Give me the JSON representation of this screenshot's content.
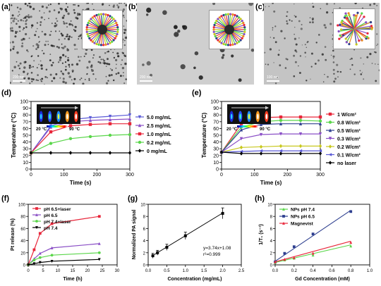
{
  "figure": {
    "panels": {
      "a": {
        "letter": "(a)",
        "scalebar": "200 nm"
      },
      "b": {
        "letter": "(b)",
        "scalebar": "200 nm"
      },
      "c": {
        "letter": "(c)",
        "scalebar": "100 nm"
      },
      "d": {
        "letter": "(d)"
      },
      "e": {
        "letter": "(e)"
      },
      "f": {
        "letter": "(f)"
      },
      "g": {
        "letter": "(g)"
      },
      "h": {
        "letter": "(h)"
      }
    },
    "thermal_insets": {
      "d": {
        "low": "20 °C",
        "high": "90 °C"
      },
      "e": {
        "low": "20 °C",
        "high": "90 °C"
      }
    },
    "annotations": {
      "g_fit": "y=3.74x+1.08",
      "g_r2": "r²=0.999"
    },
    "colors": {
      "purple": "#5a5ad6",
      "violet": "#8a4fc6",
      "red": "#e8263a",
      "green": "#5ad64a",
      "black": "#000000",
      "yellow": "#c8c81e",
      "navy": "#2e3f8f",
      "gray_tem": "#c9c9c9"
    }
  },
  "chart_data": [
    {
      "id": "d",
      "type": "line",
      "xlabel": "Time (s)",
      "ylabel": "Temperature (°C)",
      "xlim": [
        0,
        300
      ],
      "ylim": [
        0,
        100
      ],
      "xticks": [
        0,
        100,
        200,
        300
      ],
      "yticks": [
        0,
        10,
        20,
        30,
        40,
        50,
        60,
        70,
        80,
        90,
        100
      ],
      "x": [
        0,
        60,
        120,
        180,
        240,
        300
      ],
      "legend_position": "right",
      "series": [
        {
          "name": "5.0 mg/mL",
          "color": "#5a5ad6",
          "marker": "triangle-down",
          "values": [
            24,
            64,
            73,
            76,
            78,
            80
          ]
        },
        {
          "name": "2.5 mg/mL",
          "color": "#8a4fc6",
          "marker": "triangle",
          "values": [
            24,
            62,
            70,
            72,
            73,
            74
          ]
        },
        {
          "name": "1.0 mg/mL",
          "color": "#e8263a",
          "marker": "square",
          "values": [
            24,
            55,
            64,
            66,
            67,
            67
          ]
        },
        {
          "name": "0.2 mg/mL",
          "color": "#5ad64a",
          "marker": "circle",
          "values": [
            24,
            38,
            45,
            48,
            50,
            51
          ]
        },
        {
          "name": "0 mg/mL",
          "color": "#000000",
          "marker": "diamond",
          "values": [
            24,
            24,
            24,
            24,
            24,
            24
          ]
        }
      ]
    },
    {
      "id": "e",
      "type": "line",
      "xlabel": "Time (s)",
      "ylabel": "Temperature (°C)",
      "xlim": [
        0,
        300
      ],
      "ylim": [
        0,
        100
      ],
      "xticks": [
        0,
        100,
        200,
        300
      ],
      "yticks": [
        0,
        10,
        20,
        30,
        40,
        50,
        60,
        70,
        80,
        90,
        100
      ],
      "x": [
        0,
        60,
        120,
        180,
        240,
        300
      ],
      "legend_position": "right",
      "series": [
        {
          "name": "1 W/cm²",
          "color": "#e8263a",
          "marker": "square",
          "values": [
            25,
            67,
            76,
            77,
            77,
            77
          ]
        },
        {
          "name": "0.8 W/cm²",
          "color": "#5ad64a",
          "marker": "circle",
          "values": [
            25,
            62,
            70,
            72,
            72,
            71
          ]
        },
        {
          "name": "0.5 W/cm²",
          "color": "#2e3f8f",
          "marker": "triangle",
          "values": [
            25,
            58,
            66,
            67,
            67,
            67
          ]
        },
        {
          "name": "0.3 W/cm²",
          "color": "#8a4fc6",
          "marker": "triangle-down",
          "values": [
            25,
            45,
            51,
            52,
            52,
            52
          ]
        },
        {
          "name": "0.2 W/cm²",
          "color": "#c8c81e",
          "marker": "diamond",
          "values": [
            25,
            32,
            33,
            34,
            34,
            34
          ]
        },
        {
          "name": "0.1 W/cm²",
          "color": "#5a5ad6",
          "marker": "triangle-left",
          "values": [
            25,
            26,
            27,
            27,
            27,
            27
          ]
        },
        {
          "name": "no laser",
          "color": "#000000",
          "marker": "diamond",
          "values": [
            25,
            23,
            23,
            23,
            23,
            23
          ]
        }
      ]
    },
    {
      "id": "f",
      "type": "line",
      "xlabel": "Time (h)",
      "ylabel": "Pt release (%)",
      "xlim": [
        0,
        30
      ],
      "ylim": [
        0,
        100
      ],
      "xticks": [
        0,
        5,
        10,
        15,
        20,
        25,
        30
      ],
      "yticks": [
        0,
        20,
        40,
        60,
        80,
        100
      ],
      "x": [
        0,
        2,
        4,
        8,
        24
      ],
      "legend_position": "top-left",
      "series": [
        {
          "name": "pH 6.5+laser",
          "color": "#e8263a",
          "marker": "square",
          "values": [
            0,
            25,
            52,
            68,
            80
          ]
        },
        {
          "name": "pH 6.5",
          "color": "#8a4fc6",
          "marker": "triangle",
          "values": [
            0,
            10,
            19,
            28,
            35
          ]
        },
        {
          "name": "pH 7.4+laser",
          "color": "#5ad64a",
          "marker": "circle",
          "values": [
            0,
            8,
            12,
            16,
            20
          ]
        },
        {
          "name": "pH 7.4",
          "color": "#000000",
          "marker": "triangle-down",
          "values": [
            0,
            2,
            4,
            6,
            9
          ]
        }
      ]
    },
    {
      "id": "g",
      "type": "scatter",
      "xlabel": "Concentration (mg/mL)",
      "ylabel": "Normalized PA signal",
      "xlim": [
        0,
        2.5
      ],
      "ylim": [
        0,
        10
      ],
      "xticks": [
        0,
        0.5,
        1.0,
        1.5,
        2.0,
        2.5
      ],
      "xticklabels": [
        "0.0",
        "0.5",
        "1.0",
        "1.5",
        "2.0",
        "2.5"
      ],
      "yticks": [
        0,
        2,
        4,
        6,
        8,
        10
      ],
      "series": [
        {
          "name": "",
          "color": "#000000",
          "x": [
            0.125,
            0.25,
            0.5,
            1.0,
            2.0
          ],
          "values": [
            1.5,
            2.0,
            2.9,
            4.8,
            8.5
          ],
          "err": [
            0.4,
            0.4,
            0.5,
            0.6,
            0.9
          ]
        }
      ],
      "fit": {
        "slope": 3.74,
        "intercept": 1.08
      }
    },
    {
      "id": "h",
      "type": "scatter",
      "xlabel": "Gd Concentration (mM)",
      "ylabel": "1/T₁ (s⁻¹)",
      "xlim": [
        0,
        1.0
      ],
      "ylim": [
        0,
        10
      ],
      "xticks": [
        0,
        0.2,
        0.4,
        0.6,
        0.8,
        1.0
      ],
      "xticklabels": [
        "0.0",
        "0.2",
        "0.4",
        "0.6",
        "0.8",
        "1.0"
      ],
      "yticks": [
        0,
        2,
        4,
        6,
        8,
        10
      ],
      "legend_position": "top-left",
      "series": [
        {
          "name": "NPs pH 7.4",
          "color": "#5ad64a",
          "x": [
            0,
            0.1,
            0.2,
            0.4,
            0.8
          ],
          "values": [
            0.4,
            0.8,
            1.1,
            1.6,
            3.1
          ],
          "fit": [
            0.4,
            3.3
          ]
        },
        {
          "name": "NPs pH 6.5",
          "color": "#2e3f8f",
          "x": [
            0,
            0.1,
            0.2,
            0.4,
            0.8
          ],
          "values": [
            0.5,
            1.9,
            3.0,
            5.1,
            8.8
          ],
          "fit": [
            0.6,
            9.0
          ]
        },
        {
          "name": "Magnevist",
          "color": "#e8263a",
          "x": [
            0,
            0.1,
            0.2,
            0.4,
            0.8
          ],
          "values": [
            0.5,
            0.9,
            1.2,
            1.9,
            3.7
          ],
          "fit": [
            0.5,
            3.9
          ]
        }
      ]
    }
  ]
}
